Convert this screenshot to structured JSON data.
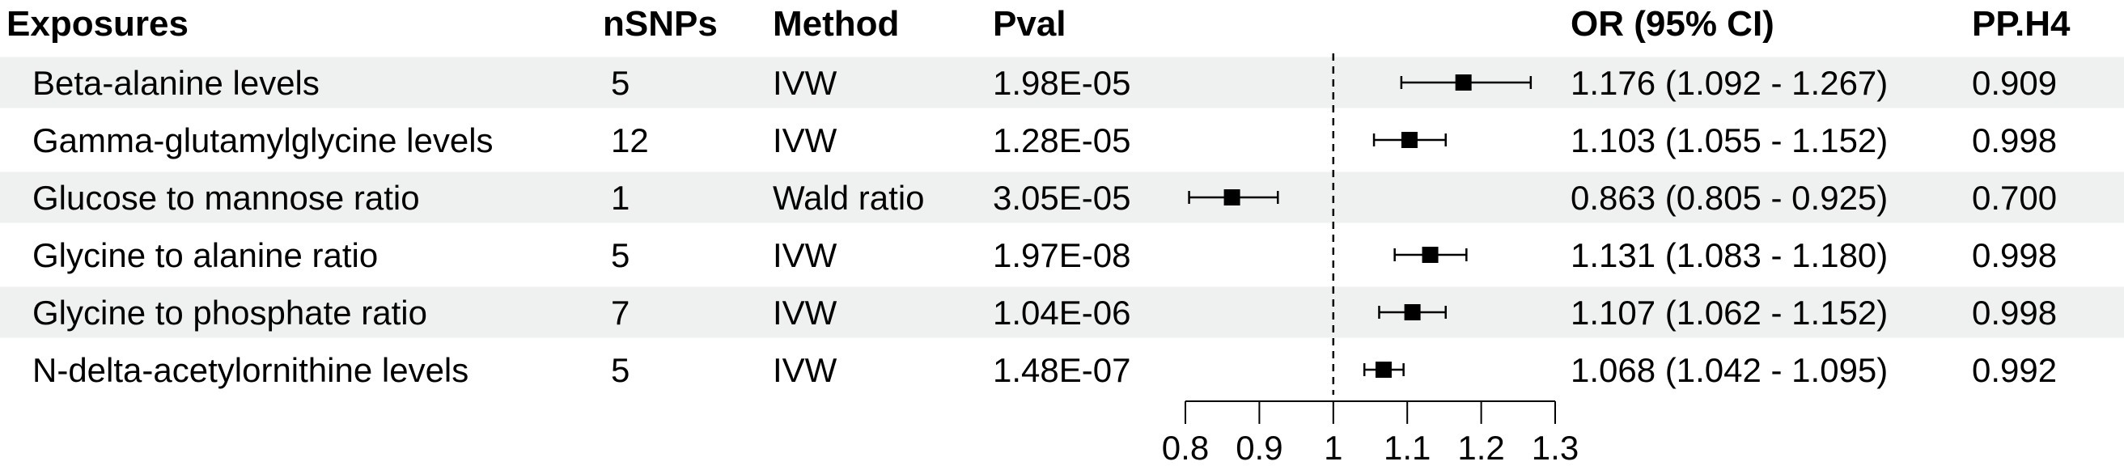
{
  "headers": {
    "exposure": "Exposures",
    "nsnps": "nSNPs",
    "method": "Method",
    "pval": "Pval",
    "or": "OR (95% CI)",
    "pph4": "PP.H4"
  },
  "colors": {
    "stripe": "#eef1ef",
    "marker": "#000000",
    "reference_line": "#000000"
  },
  "chart_data": {
    "type": "forest",
    "xlim": [
      0.8,
      1.3
    ],
    "reference_value": 1,
    "x_ticks": [
      0.8,
      0.9,
      1,
      1.1,
      1.2,
      1.3
    ],
    "x_tick_labels": [
      "0.8",
      "0.9",
      "1",
      "1.1",
      "1.2",
      "1.3"
    ],
    "rows": [
      {
        "exposure": "Beta-alanine levels",
        "nsnps": "5",
        "method": "IVW",
        "pval": "1.98E-05",
        "or_text": "1.176 (1.092 - 1.267)",
        "pph4": "0.909",
        "or": 1.176,
        "lower": 1.092,
        "upper": 1.267
      },
      {
        "exposure": "Gamma-glutamylglycine levels",
        "nsnps": "12",
        "method": "IVW",
        "pval": "1.28E-05",
        "or_text": "1.103 (1.055 - 1.152)",
        "pph4": "0.998",
        "or": 1.103,
        "lower": 1.055,
        "upper": 1.152
      },
      {
        "exposure": "Glucose to mannose ratio",
        "nsnps": "1",
        "method": "Wald ratio",
        "pval": "3.05E-05",
        "or_text": "0.863 (0.805 - 0.925)",
        "pph4": "0.700",
        "or": 0.863,
        "lower": 0.805,
        "upper": 0.925
      },
      {
        "exposure": "Glycine to alanine ratio",
        "nsnps": "5",
        "method": "IVW",
        "pval": "1.97E-08",
        "or_text": "1.131 (1.083 - 1.180)",
        "pph4": "0.998",
        "or": 1.131,
        "lower": 1.083,
        "upper": 1.18
      },
      {
        "exposure": "Glycine to phosphate ratio",
        "nsnps": "7",
        "method": "IVW",
        "pval": "1.04E-06",
        "or_text": "1.107 (1.062 - 1.152)",
        "pph4": "0.998",
        "or": 1.107,
        "lower": 1.062,
        "upper": 1.152
      },
      {
        "exposure": "N-delta-acetylornithine levels",
        "nsnps": "5",
        "method": "IVW",
        "pval": "1.48E-07",
        "or_text": "1.068 (1.042 - 1.095)",
        "pph4": "0.992",
        "or": 1.068,
        "lower": 1.042,
        "upper": 1.095
      }
    ]
  }
}
